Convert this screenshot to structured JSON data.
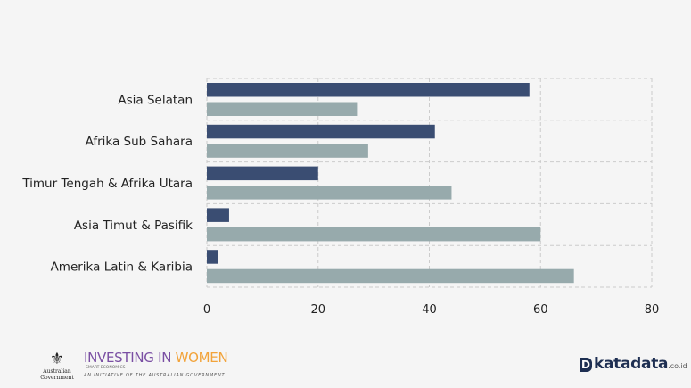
{
  "chart_data": {
    "type": "bar",
    "orientation": "horizontal",
    "categories": [
      "Asia Selatan",
      "Afrika Sub Sahara",
      "Timur Tengah & Afrika Utara",
      "Asia Timut & Pasifik",
      "Amerika Latin & Karibia"
    ],
    "series": [
      {
        "values": [
          58,
          41,
          20,
          4,
          2
        ],
        "color": "#3a4d72"
      },
      {
        "values": [
          27,
          29,
          44,
          60,
          66
        ],
        "color": "#97aaac"
      }
    ],
    "xlim": [
      0,
      80
    ],
    "xticks": [
      0,
      20,
      40,
      60,
      80
    ],
    "grid": true,
    "legend": "none"
  },
  "footer": {
    "gov_label": "Australian Government",
    "iiw_part1": "INVESTING IN ",
    "iiw_part2": "WOMEN",
    "iiw_sub": "SMART ECONOMICS",
    "iiw_initiative": "AN INITIATIVE OF THE AUSTRALIAN GOVERNMENT",
    "katadata_d": "D",
    "katadata": "katadata",
    "katadata_suffix": ".co.id"
  }
}
